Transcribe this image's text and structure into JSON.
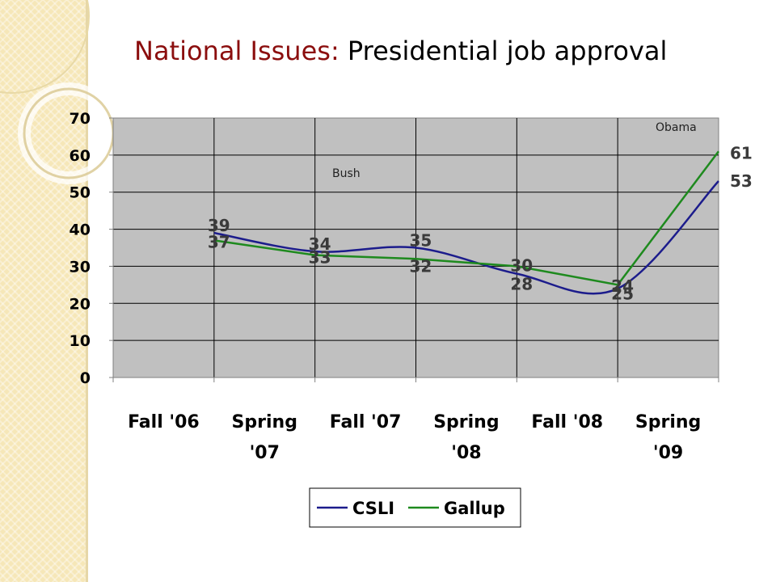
{
  "slide": {
    "title_main": "National Issues:",
    "title_sub": " Presidential job approval"
  },
  "chart_data": {
    "type": "line",
    "categories": [
      "Fall '06",
      "Spring '07",
      "Fall '07",
      "Spring '08",
      "Fall '08",
      "Spring '09"
    ],
    "category_lines": [
      [
        "Fall '06"
      ],
      [
        "Spring",
        "'07"
      ],
      [
        "Fall '07"
      ],
      [
        "Spring",
        "'08"
      ],
      [
        "Fall '08"
      ],
      [
        "Spring",
        "'09"
      ]
    ],
    "series": [
      {
        "name": "CSLI",
        "color": "#1c1c8c",
        "values": [
          39,
          34,
          35,
          28,
          24,
          53
        ]
      },
      {
        "name": "Gallup",
        "color": "#1e8a1e",
        "values": [
          37,
          33,
          32,
          30,
          25,
          61
        ]
      }
    ],
    "ylim": [
      0,
      70
    ],
    "yticks": [
      0,
      10,
      20,
      30,
      40,
      50,
      60,
      70
    ],
    "grid": true,
    "plot_background": "#c0c0c0",
    "legend_position": "bottom",
    "annotations": [
      "Bush",
      "Obama"
    ]
  }
}
